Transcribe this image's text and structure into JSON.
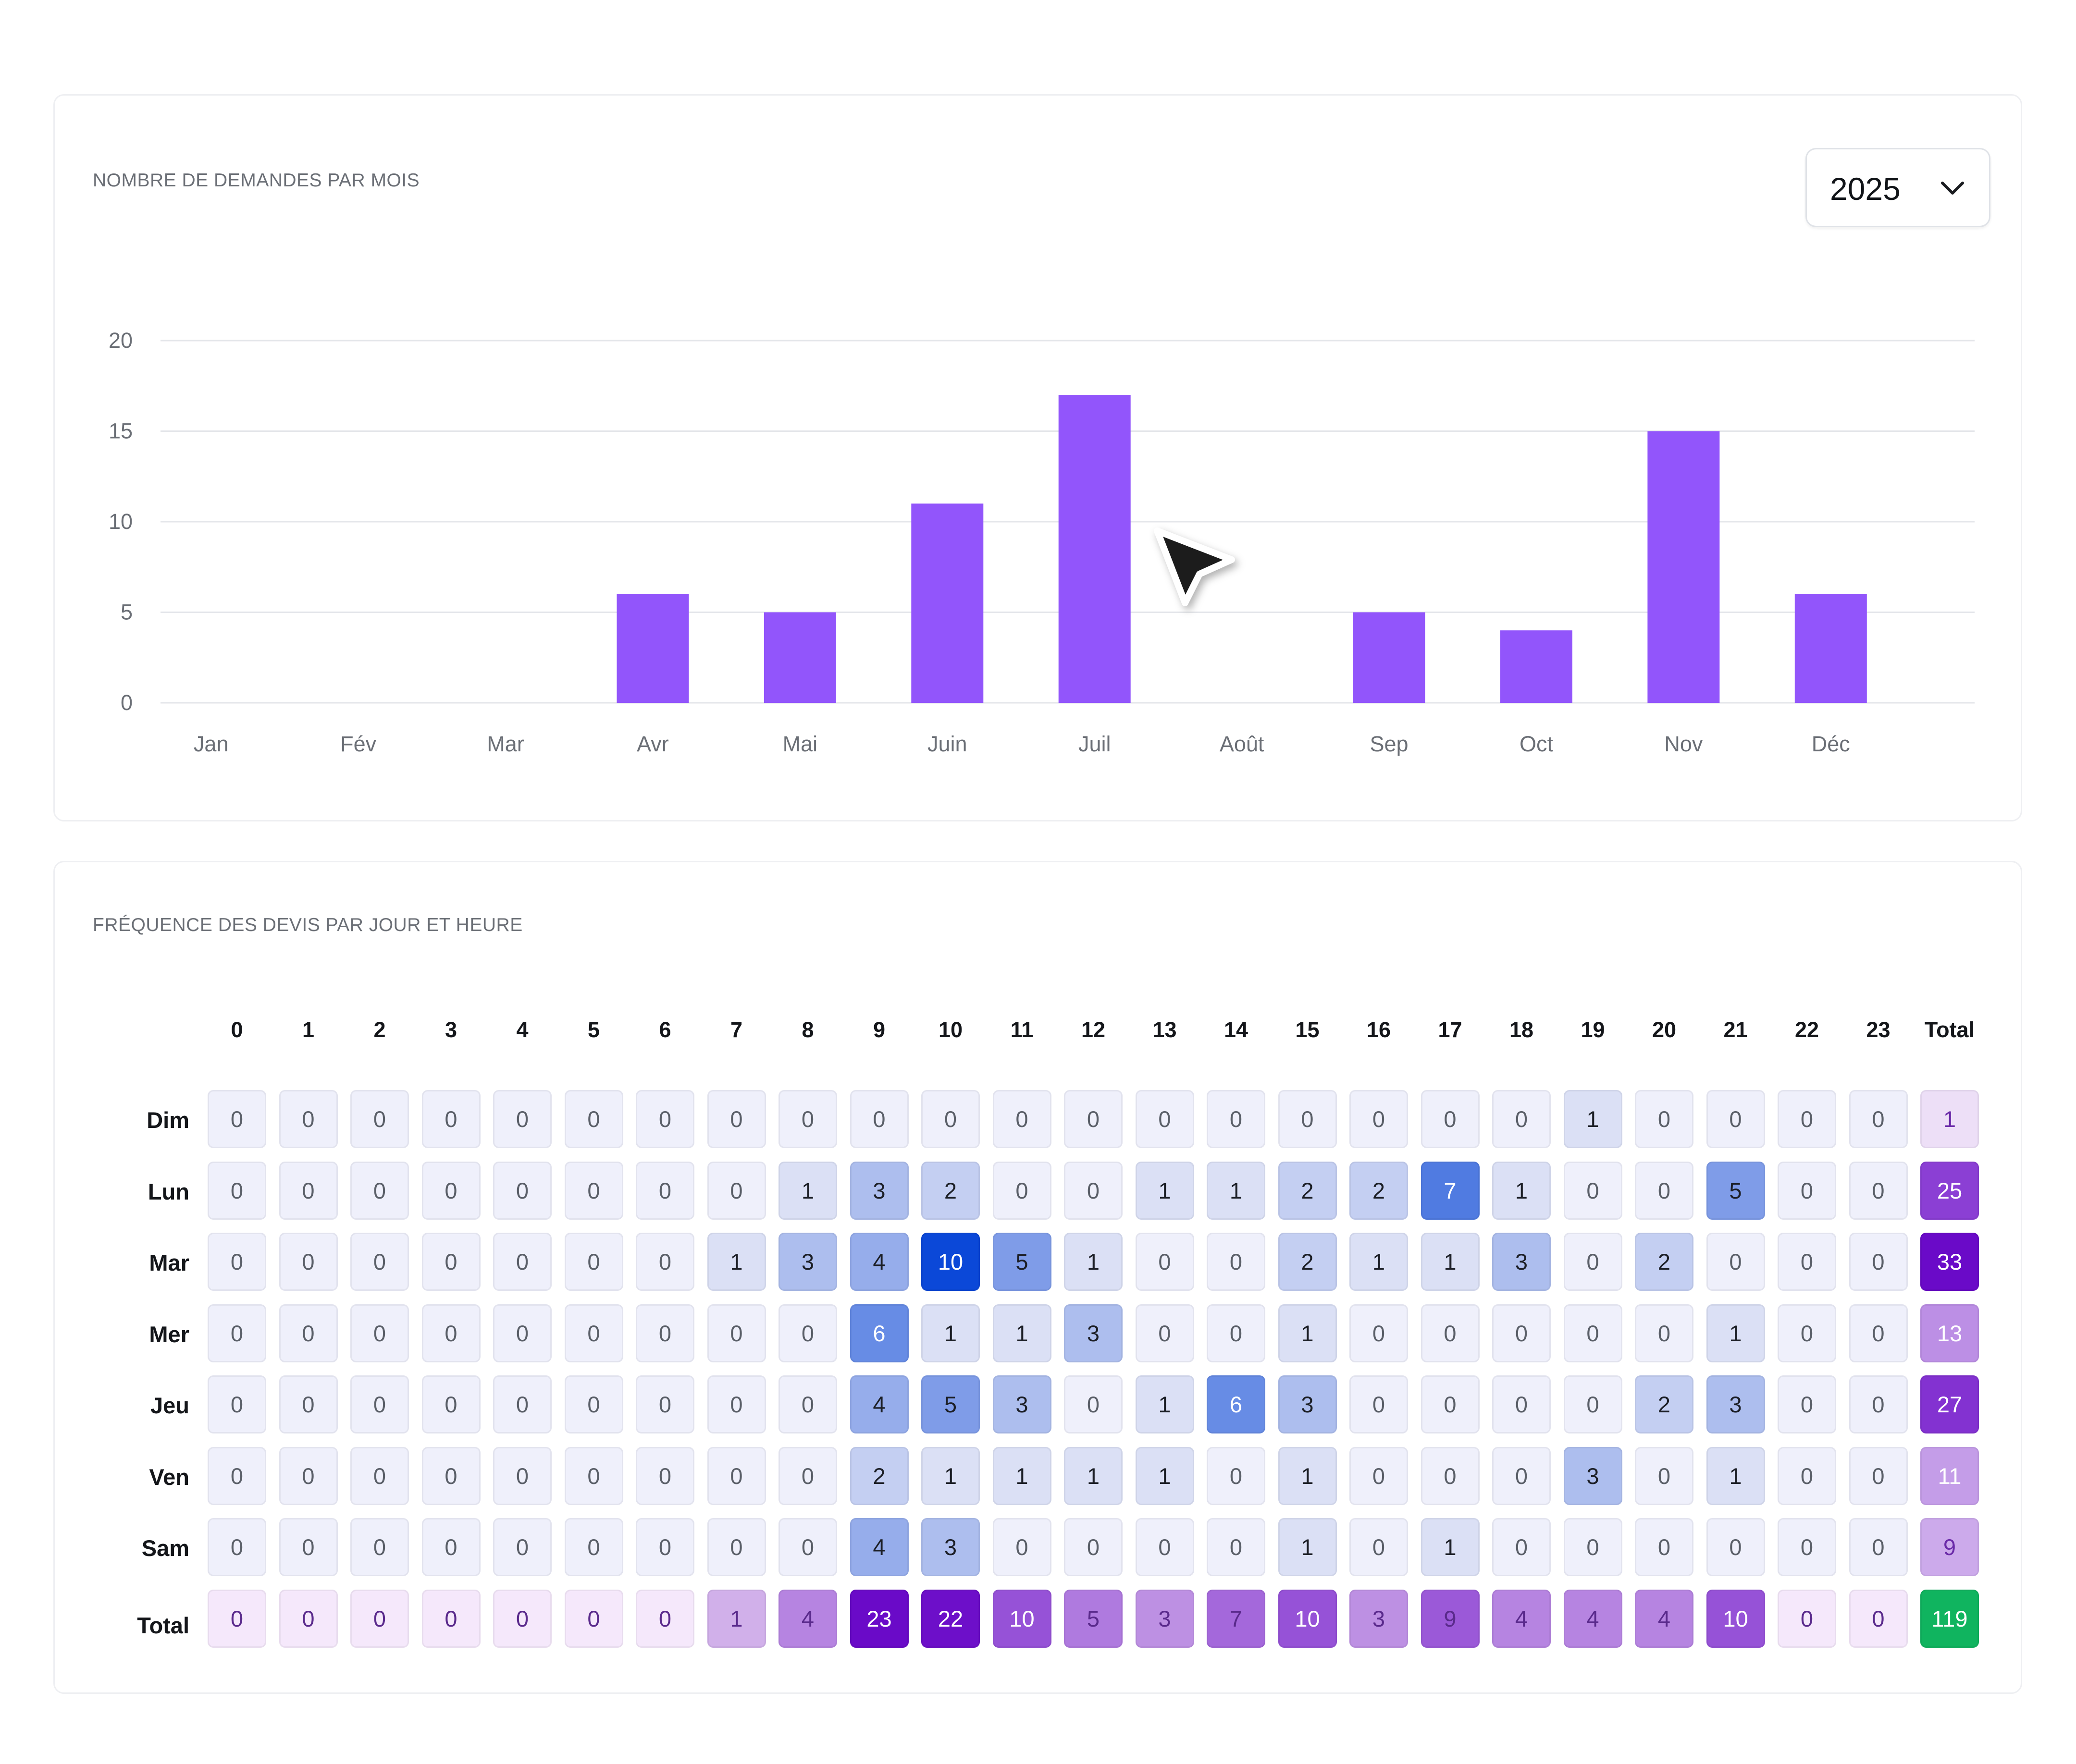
{
  "bar_section": {
    "title": "NOMBRE DE DEMANDES PAR MOIS",
    "year_select": {
      "value": "2025",
      "icon": "chevron-down-icon"
    }
  },
  "heat_section": {
    "title": "FRÉQUENCE DES DEVIS PAR JOUR ET HEURE"
  },
  "colors": {
    "bar": "#9255fb",
    "grid": "#e4e6ea",
    "axis_text": "#6b6f76",
    "heat_zero": "#eff0fb",
    "heat_max": "#0040d6",
    "total_max": "#6a0ac8",
    "grand_total": "#10b45f"
  },
  "chart_data": [
    {
      "type": "bar",
      "title": "NOMBRE DE DEMANDES PAR MOIS",
      "categories": [
        "Jan",
        "Fév",
        "Mar",
        "Avr",
        "Mai",
        "Juin",
        "Juil",
        "Août",
        "Sep",
        "Oct",
        "Nov",
        "Déc"
      ],
      "values": [
        0,
        0,
        0,
        6,
        5,
        11,
        17,
        0,
        5,
        4,
        15,
        6
      ],
      "ylim": [
        0,
        20
      ],
      "yticks": [
        0,
        5,
        10,
        15,
        20
      ],
      "grid": true,
      "xlabel": "",
      "ylabel": ""
    },
    {
      "type": "heatmap",
      "title": "FRÉQUENCE DES DEVIS PAR JOUR ET HEURE",
      "columns": [
        "0",
        "1",
        "2",
        "3",
        "4",
        "5",
        "6",
        "7",
        "8",
        "9",
        "10",
        "11",
        "12",
        "13",
        "14",
        "15",
        "16",
        "17",
        "18",
        "19",
        "20",
        "21",
        "22",
        "23"
      ],
      "total_label": "Total",
      "rows": [
        {
          "label": "Dim",
          "values": [
            0,
            0,
            0,
            0,
            0,
            0,
            0,
            0,
            0,
            0,
            0,
            0,
            0,
            0,
            0,
            0,
            0,
            0,
            0,
            1,
            0,
            0,
            0,
            0
          ],
          "total": 1
        },
        {
          "label": "Lun",
          "values": [
            0,
            0,
            0,
            0,
            0,
            0,
            0,
            0,
            1,
            3,
            2,
            0,
            0,
            1,
            1,
            2,
            2,
            7,
            1,
            0,
            0,
            5,
            0,
            0
          ],
          "total": 25
        },
        {
          "label": "Mar",
          "values": [
            0,
            0,
            0,
            0,
            0,
            0,
            0,
            1,
            3,
            4,
            10,
            5,
            1,
            0,
            0,
            2,
            1,
            1,
            3,
            0,
            2,
            0,
            0,
            0
          ],
          "total": 33
        },
        {
          "label": "Mer",
          "values": [
            0,
            0,
            0,
            0,
            0,
            0,
            0,
            0,
            0,
            6,
            1,
            1,
            3,
            0,
            0,
            1,
            0,
            0,
            0,
            0,
            0,
            1,
            0,
            0
          ],
          "total": 13
        },
        {
          "label": "Jeu",
          "values": [
            0,
            0,
            0,
            0,
            0,
            0,
            0,
            0,
            0,
            4,
            5,
            3,
            0,
            1,
            6,
            3,
            0,
            0,
            0,
            0,
            2,
            3,
            0,
            0
          ],
          "total": 27
        },
        {
          "label": "Ven",
          "values": [
            0,
            0,
            0,
            0,
            0,
            0,
            0,
            0,
            0,
            2,
            1,
            1,
            1,
            1,
            0,
            1,
            0,
            0,
            0,
            3,
            0,
            1,
            0,
            0
          ],
          "total": 11
        },
        {
          "label": "Sam",
          "values": [
            0,
            0,
            0,
            0,
            0,
            0,
            0,
            0,
            0,
            4,
            3,
            0,
            0,
            0,
            0,
            1,
            0,
            1,
            0,
            0,
            0,
            0,
            0,
            0
          ],
          "total": 9
        }
      ],
      "totals_row": {
        "label": "Total",
        "values": [
          0,
          0,
          0,
          0,
          0,
          0,
          0,
          1,
          4,
          23,
          22,
          10,
          5,
          3,
          7,
          10,
          3,
          9,
          4,
          4,
          4,
          10,
          0,
          0
        ],
        "total": 119
      }
    }
  ]
}
